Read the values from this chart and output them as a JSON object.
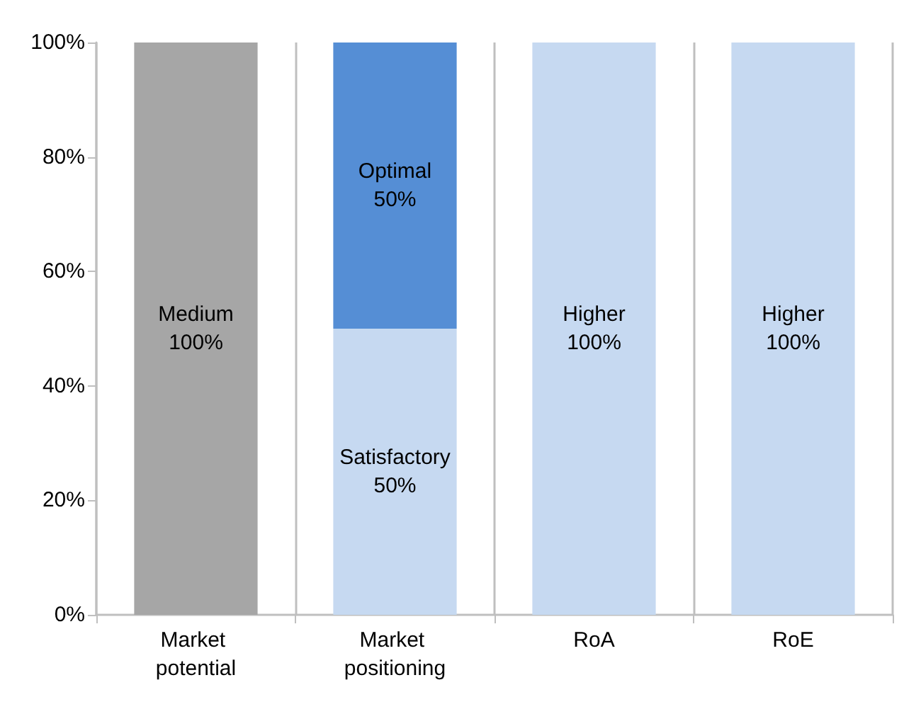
{
  "chart_data": {
    "type": "bar",
    "stacked": true,
    "categories": [
      "Market potential",
      "Market positioning",
      "RoA",
      "RoE"
    ],
    "series": [
      {
        "colors": [
          "#a6a6a6",
          "#c6d9f1",
          "#c6d9f1",
          "#c6d9f1"
        ],
        "values": [
          100,
          50,
          100,
          100
        ],
        "value_labels": [
          "Medium 100%",
          "Satisfactory 50%",
          "Higher 100%",
          "Higher 100%"
        ]
      },
      {
        "colors": [
          null,
          "#558ed5",
          null,
          null
        ],
        "values": [
          null,
          50,
          null,
          null
        ],
        "value_labels": [
          null,
          "Optimal 50%",
          null,
          null
        ]
      }
    ],
    "ylim": [
      0,
      100
    ],
    "yticks": [
      {
        "value": 0,
        "label": "0%"
      },
      {
        "value": 20,
        "label": "20%"
      },
      {
        "value": 40,
        "label": "40%"
      },
      {
        "value": 60,
        "label": "60%"
      },
      {
        "value": 80,
        "label": "80%"
      },
      {
        "value": 100,
        "label": "100%"
      }
    ],
    "grid": "x"
  }
}
